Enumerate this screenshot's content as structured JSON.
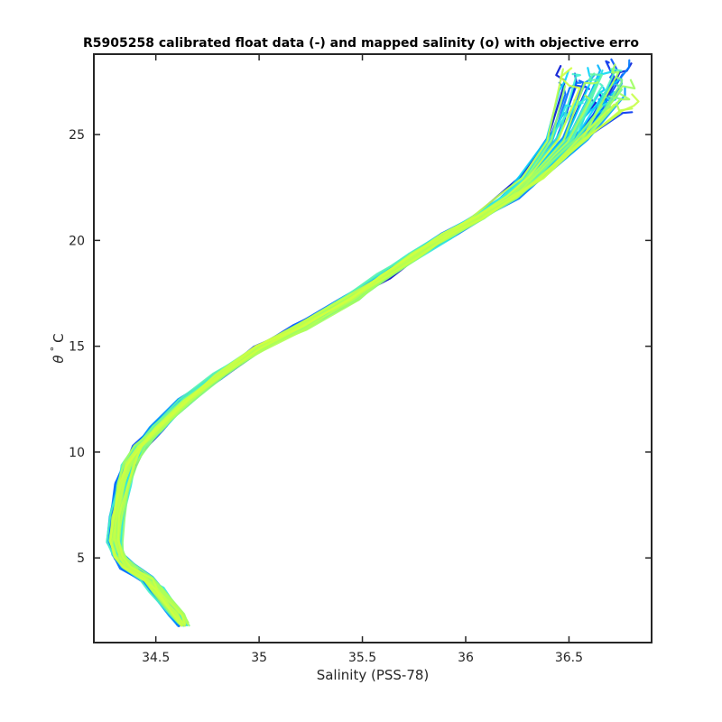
{
  "chart_data": {
    "type": "line",
    "title": "R5905258 calibrated float data (-) and mapped salinity (o) with objective erro",
    "xlabel": "Salinity (PSS-78)",
    "ylabel_symbol": "θ",
    "ylabel_degree": "°",
    "ylabel_unit": "C",
    "xlim": [
      34.2,
      36.9
    ],
    "ylim": [
      1.0,
      28.8
    ],
    "x_ticks": [
      34.5,
      35,
      35.5,
      36,
      36.5
    ],
    "x_tick_labels": [
      "34.5",
      "35",
      "35.5",
      "36",
      "36.5"
    ],
    "y_ticks": [
      5,
      10,
      15,
      20,
      25
    ],
    "y_tick_labels": [
      "5",
      "10",
      "15",
      "20",
      "25"
    ],
    "grid": false,
    "legend": "none",
    "colormap": [
      "#0000c0",
      "#0040ff",
      "#0090ff",
      "#00d0ff",
      "#40f0d0",
      "#a0ff60",
      "#d0ff40"
    ],
    "profile_count": 60,
    "base_profile": {
      "salinity": [
        34.63,
        34.6,
        34.5,
        34.46,
        34.36,
        34.32,
        34.3,
        34.31,
        34.34,
        34.37,
        34.42,
        34.5,
        34.64,
        34.8,
        35.0,
        35.2,
        35.45,
        35.6,
        35.75,
        35.9,
        36.05,
        36.2,
        36.3,
        36.45,
        36.55
      ],
      "theta": [
        1.9,
        2.3,
        3.5,
        4.0,
        4.6,
        5.1,
        5.8,
        7.0,
        8.5,
        9.4,
        10.2,
        11.1,
        12.4,
        13.6,
        14.9,
        15.9,
        17.3,
        18.3,
        19.3,
        20.2,
        21.1,
        22.1,
        23.0,
        24.8,
        26.5
      ]
    }
  }
}
